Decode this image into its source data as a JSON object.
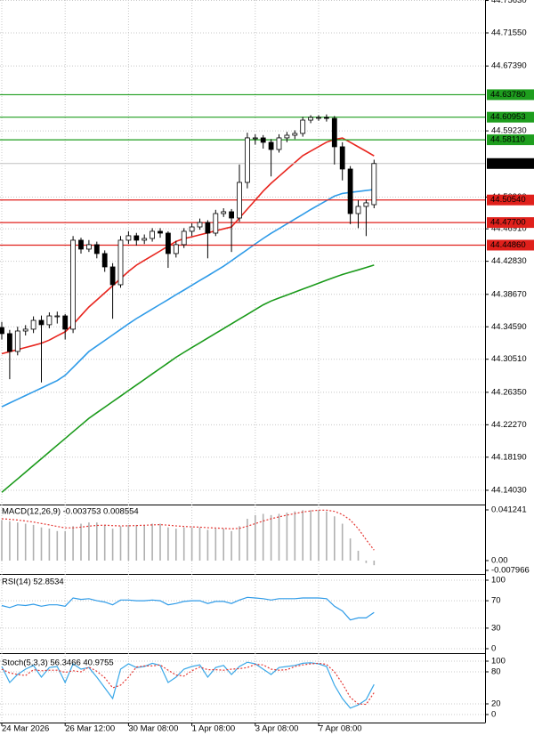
{
  "chart_data": [
    {
      "type": "candlestick",
      "categories": [
        "24 Mar 2026",
        null,
        null,
        null,
        null,
        null,
        null,
        null,
        "26 Mar 12:00",
        null,
        null,
        null,
        null,
        null,
        null,
        null,
        "30 Mar 08:00",
        null,
        null,
        null,
        null,
        null,
        null,
        null,
        "1 Apr 08:00",
        null,
        null,
        null,
        null,
        null,
        null,
        null,
        "3 Apr 08:00",
        null,
        null,
        null,
        null,
        null,
        null,
        null,
        "7 Apr 08:00",
        null,
        null,
        null,
        null,
        null,
        null,
        null
      ],
      "open": [
        44.345,
        44.3373,
        44.3149,
        44.3406,
        44.3429,
        44.354,
        44.3485,
        44.3596,
        44.3596,
        44.3429,
        44.4548,
        44.4436,
        44.4492,
        44.438,
        44.4212,
        44.3988,
        44.4548,
        44.4604,
        44.4548,
        44.457,
        44.466,
        44.4637,
        44.438,
        44.4492,
        44.466,
        44.4715,
        44.4771,
        44.4637,
        44.4883,
        44.4906,
        44.4827,
        44.5275,
        44.5835,
        44.5835,
        44.5779,
        44.5689,
        44.5835,
        44.5868,
        44.5891,
        44.6058,
        44.6092,
        44.6092,
        44.608,
        44.5723,
        44.5443,
        44.4883,
        44.4973,
        44.4995
      ],
      "high": [
        44.352,
        44.342,
        44.346,
        44.348,
        44.359,
        44.36,
        44.364,
        44.365,
        44.362,
        44.46,
        44.458,
        44.455,
        44.453,
        44.442,
        44.426,
        44.46,
        44.466,
        44.464,
        44.462,
        44.47,
        44.47,
        44.466,
        44.454,
        44.47,
        44.476,
        44.482,
        44.48,
        44.493,
        44.495,
        44.494,
        44.55,
        44.59,
        44.588,
        44.587,
        44.582,
        44.588,
        44.591,
        44.593,
        44.61,
        44.612,
        44.612,
        44.613,
        44.611,
        44.578,
        44.548,
        44.505,
        44.506,
        44.556
      ],
      "low": [
        44.33,
        44.28,
        44.31,
        44.335,
        44.338,
        44.276,
        44.344,
        44.35,
        44.33,
        44.338,
        44.438,
        44.44,
        44.432,
        44.415,
        44.356,
        44.395,
        44.45,
        44.448,
        44.45,
        44.453,
        44.458,
        44.42,
        44.433,
        44.445,
        44.46,
        44.468,
        44.432,
        44.46,
        44.484,
        44.44,
        44.478,
        44.52,
        44.575,
        44.57,
        44.535,
        44.565,
        44.578,
        44.582,
        44.585,
        44.602,
        44.605,
        44.604,
        44.55,
        44.53,
        44.475,
        44.47,
        44.46,
        44.495
      ],
      "close": [
        44.3373,
        44.3149,
        44.3406,
        44.3429,
        44.354,
        44.3485,
        44.3596,
        44.3596,
        44.3429,
        44.4548,
        44.4436,
        44.4492,
        44.438,
        44.4212,
        44.3988,
        44.4548,
        44.4604,
        44.4548,
        44.457,
        44.466,
        44.4637,
        44.438,
        44.4492,
        44.466,
        44.4715,
        44.4771,
        44.4637,
        44.4883,
        44.4906,
        44.4827,
        44.5275,
        44.5835,
        44.5835,
        44.5779,
        44.5689,
        44.5835,
        44.5868,
        44.5891,
        44.6058,
        44.6092,
        44.6092,
        44.608,
        44.5723,
        44.5443,
        44.4883,
        44.4973,
        44.5018,
        44.5512
      ],
      "up_color": "#ffffff",
      "down_color": "#000000",
      "wick_color": "#000000",
      "series": [
        {
          "color": "#e8261f",
          "values": [
            44.3121,
            44.3146,
            44.3172,
            44.3199,
            44.3225,
            44.3251,
            44.3292,
            44.3345,
            44.3396,
            44.3488,
            44.36,
            44.3708,
            44.3797,
            44.3886,
            44.3976,
            44.4065,
            44.4156,
            44.4234,
            44.4294,
            44.4354,
            44.4413,
            44.4473,
            44.4533,
            44.4567,
            44.4591,
            44.4616,
            44.464,
            44.4666,
            44.4691,
            44.4715,
            44.4827,
            44.4939,
            44.5051,
            44.5165,
            44.5264,
            44.5351,
            44.5438,
            44.5526,
            44.5612,
            44.5669,
            44.5725,
            44.5781,
            44.5814,
            44.5833,
            44.578,
            44.5723,
            44.5666,
            44.5608
          ]
        },
        {
          "color": "#2f9be8",
          "values": [
            44.2454,
            44.2501,
            44.2548,
            44.2595,
            44.2642,
            44.2689,
            44.2736,
            44.2783,
            44.2849,
            44.2948,
            44.3048,
            44.3148,
            44.3218,
            44.3287,
            44.3357,
            44.3426,
            44.3497,
            44.3563,
            44.3622,
            44.3682,
            44.3742,
            44.3801,
            44.3862,
            44.3921,
            44.3981,
            44.4041,
            44.41,
            44.416,
            44.4221,
            44.429,
            44.4361,
            44.443,
            44.4501,
            44.457,
            44.4635,
            44.4694,
            44.4753,
            44.4814,
            44.4873,
            44.4934,
            44.499,
            44.5047,
            44.5103,
            44.5136,
            44.5149,
            44.5161,
            44.5173,
            44.5185
          ]
        },
        {
          "color": "#1a9a1a",
          "values": [
            44.1377,
            44.1462,
            44.1546,
            44.1631,
            44.1716,
            44.18,
            44.1885,
            44.197,
            44.2054,
            44.2139,
            44.2223,
            44.2308,
            44.2379,
            44.2448,
            44.2517,
            44.2587,
            44.2657,
            44.2727,
            44.2796,
            44.2867,
            44.2936,
            44.3005,
            44.3076,
            44.3137,
            44.3198,
            44.3257,
            44.3317,
            44.3377,
            44.3436,
            44.3497,
            44.3556,
            44.3615,
            44.3676,
            44.3735,
            44.3783,
            44.3821,
            44.3858,
            44.3896,
            44.3933,
            44.397,
            44.4007,
            44.4045,
            44.4082,
            44.4116,
            44.4146,
            44.4175,
            44.4205,
            44.4235
          ]
        }
      ],
      "levels": [
        {
          "value": 44.6378,
          "label": "44.63780",
          "color": "#1e9e1e"
        },
        {
          "value": 44.60953,
          "label": "44.60953",
          "color": "#1e9e1e"
        },
        {
          "value": 44.5811,
          "label": "44.58110",
          "color": "#1e9e1e"
        },
        {
          "value": 44.5054,
          "label": "44.50540",
          "color": "#e0201b"
        },
        {
          "value": 44.477,
          "label": "44.47700",
          "color": "#e0201b"
        },
        {
          "value": 44.4486,
          "label": "44.44860",
          "color": "#e0201b"
        }
      ],
      "current": 44.55124,
      "ylim": [
        44.1246,
        44.7569
      ],
      "yticks": [
        {
          "value": 44.7563,
          "label": "44.75630"
        },
        {
          "value": 44.7155,
          "label": "44.71550"
        },
        {
          "value": 44.6739,
          "label": "44.67390"
        },
        {
          "value": 44.5923,
          "label": "44.59230"
        },
        {
          "value": 44.509,
          "label": "44.50900"
        },
        {
          "value": 44.4691,
          "label": "44.46910"
        },
        {
          "value": 44.4283,
          "label": "44.42830"
        },
        {
          "value": 44.3867,
          "label": "44.38670"
        },
        {
          "value": 44.3459,
          "label": "44.34590"
        },
        {
          "value": 44.3051,
          "label": "44.30510"
        },
        {
          "value": 44.2635,
          "label": "44.26350"
        },
        {
          "value": 44.2227,
          "label": "44.22270"
        },
        {
          "value": 44.1819,
          "label": "44.18190"
        },
        {
          "value": 44.1403,
          "label": "44.14030"
        }
      ],
      "grid": true
    },
    {
      "type": "indicator",
      "title": "MACD(12,26,9) -0.003753 0.008554",
      "series": [
        {
          "kind": "bar",
          "color": "#b0b0b0",
          "values": [
            0.033,
            0.032,
            0.031,
            0.03,
            0.029,
            0.027,
            0.026,
            0.024,
            0.024,
            0.028,
            0.03,
            0.031,
            0.031,
            0.029,
            0.026,
            0.028,
            0.029,
            0.029,
            0.029,
            0.03,
            0.03,
            0.027,
            0.026,
            0.027,
            0.027,
            0.027,
            0.025,
            0.026,
            0.026,
            0.024,
            0.028,
            0.034,
            0.037,
            0.038,
            0.037,
            0.038,
            0.039,
            0.04,
            0.041,
            0.041,
            0.041,
            0.04,
            0.036,
            0.03,
            0.018,
            0.008,
            -0.002,
            -0.003753
          ]
        },
        {
          "kind": "line",
          "dashed": true,
          "color": "#e53935",
          "values": [
            0.034,
            0.0336,
            0.033,
            0.0322,
            0.0313,
            0.0302,
            0.029,
            0.0278,
            0.0266,
            0.0266,
            0.0272,
            0.028,
            0.0286,
            0.0288,
            0.0284,
            0.0282,
            0.0283,
            0.0285,
            0.0287,
            0.029,
            0.0292,
            0.0288,
            0.0282,
            0.0278,
            0.0274,
            0.0272,
            0.0268,
            0.0265,
            0.0262,
            0.0258,
            0.0262,
            0.028,
            0.03,
            0.0322,
            0.034,
            0.0355,
            0.037,
            0.0382,
            0.0395,
            0.0404,
            0.041,
            0.041,
            0.04,
            0.0375,
            0.033,
            0.026,
            0.017,
            0.008554
          ]
        }
      ],
      "ylim": [
        -0.007966,
        0.041241
      ],
      "yticks": [
        0.041241,
        {
          "value": 0,
          "label": "0.00"
        },
        -0.007966
      ],
      "grid": false
    },
    {
      "type": "indicator",
      "title": "RSI(14) 52.8534",
      "series": [
        {
          "kind": "line",
          "color": "#2f9be8",
          "values": [
            63,
            60,
            64,
            63,
            65,
            62,
            64,
            64,
            62,
            74,
            72,
            73,
            70,
            68,
            64,
            71,
            71,
            70,
            70,
            71,
            70,
            64,
            66,
            69,
            70,
            70,
            66,
            69,
            69,
            66,
            71,
            75,
            74,
            73,
            71,
            73,
            73,
            73,
            74,
            74,
            74,
            73,
            62,
            55,
            42,
            45,
            45,
            52.8534
          ]
        }
      ],
      "ylim": [
        0,
        100
      ],
      "yticks": [
        100,
        70,
        30,
        0
      ],
      "grid": true
    },
    {
      "type": "indicator",
      "title": "Stoch(5,3,3) 56.3466 40.9755",
      "series": [
        {
          "kind": "line",
          "color": "#3aa8e8",
          "values": [
            90,
            60,
            75,
            85,
            92,
            70,
            88,
            90,
            60,
            95,
            85,
            88,
            70,
            50,
            30,
            85,
            95,
            88,
            90,
            96,
            92,
            60,
            70,
            85,
            90,
            93,
            70,
            88,
            92,
            75,
            90,
            98,
            95,
            85,
            75,
            88,
            90,
            92,
            96,
            97,
            95,
            90,
            55,
            30,
            12,
            18,
            28,
            56.3466
          ]
        },
        {
          "kind": "line",
          "dashed": true,
          "color": "#e53935",
          "values": [
            85,
            78,
            75,
            73,
            84,
            82,
            83,
            83,
            79,
            82,
            80,
            89,
            81,
            69,
            50,
            55,
            70,
            89,
            91,
            91,
            93,
            83,
            74,
            72,
            82,
            89,
            84,
            84,
            83,
            85,
            86,
            88,
            94,
            93,
            85,
            83,
            84,
            90,
            93,
            95,
            96,
            94,
            80,
            58,
            32,
            20,
            19,
            40.9755
          ]
        }
      ],
      "ylim": [
        0,
        100
      ],
      "yticks": [
        100,
        80,
        20,
        0
      ],
      "grid": true
    }
  ]
}
